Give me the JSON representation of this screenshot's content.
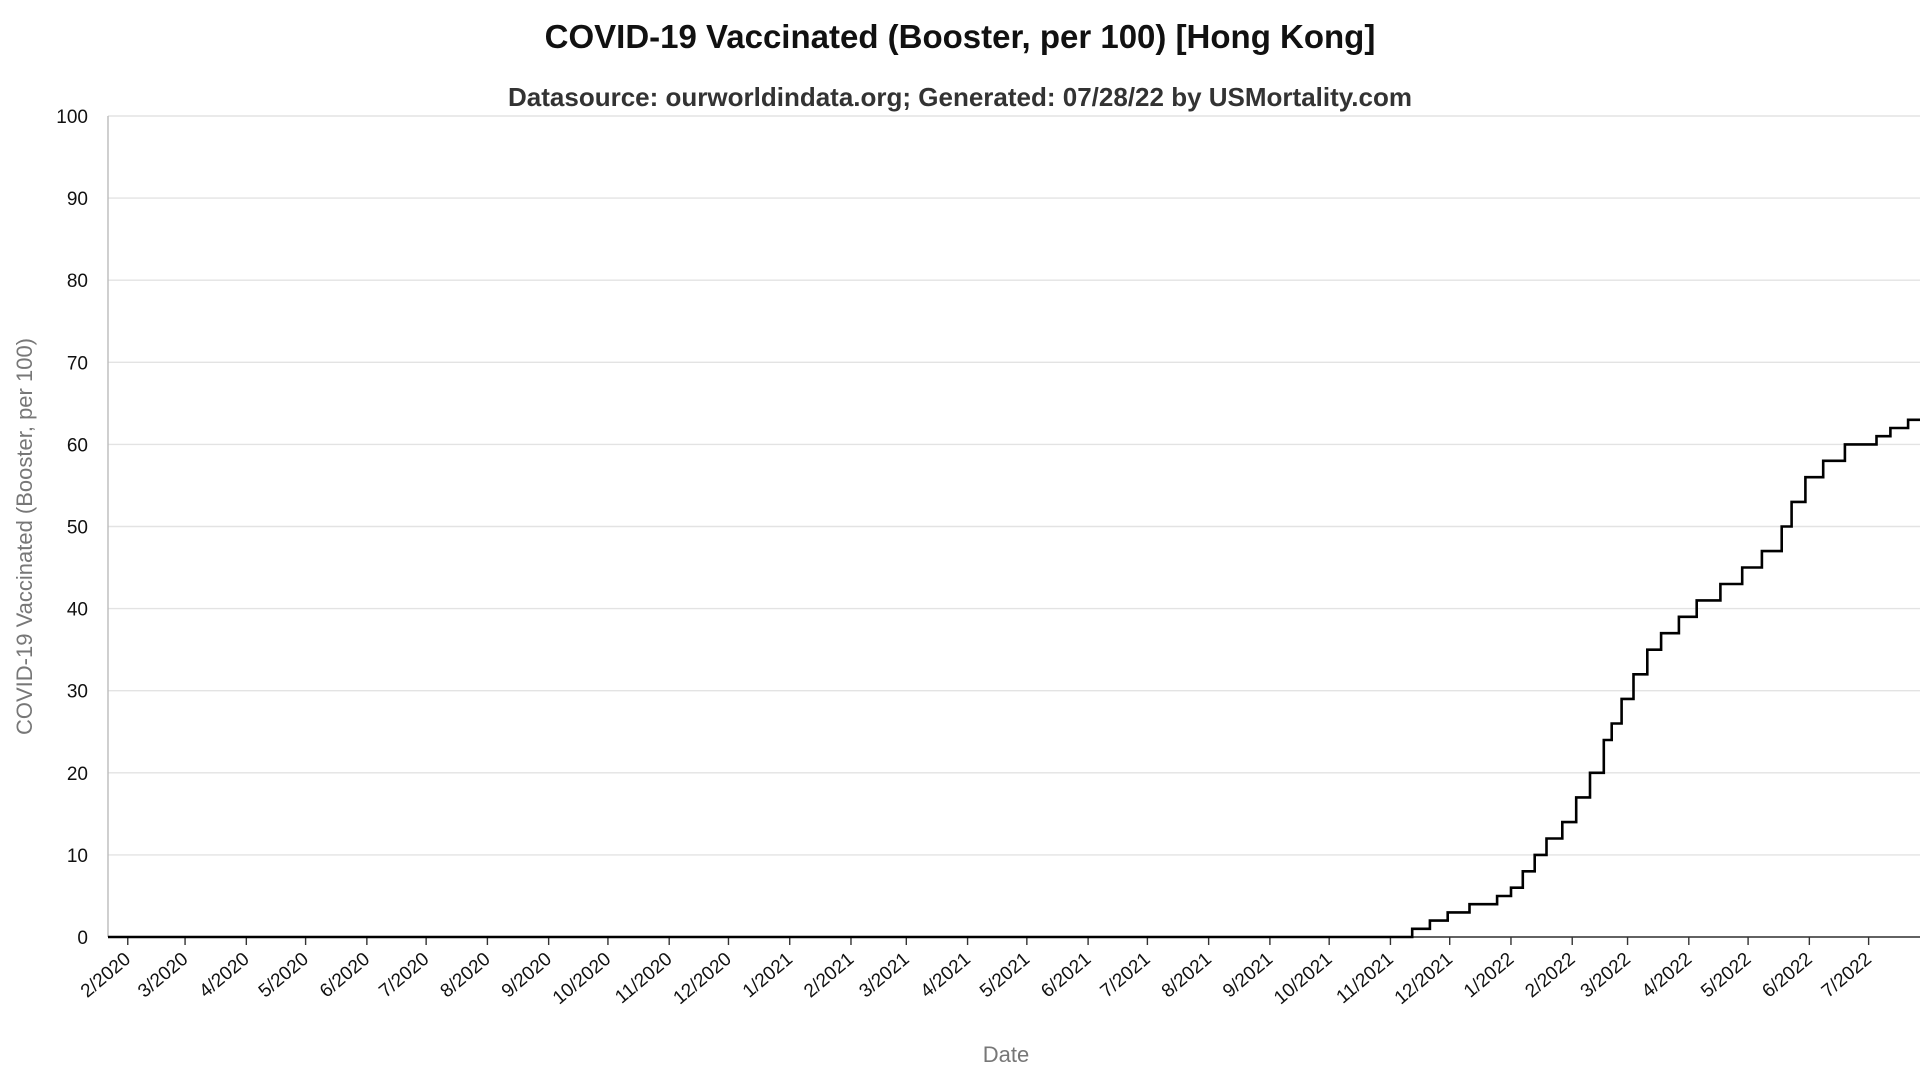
{
  "chart_data": {
    "type": "line",
    "title": "COVID-19 Vaccinated (Booster, per 100) [Hong Kong]",
    "subtitle": "Datasource: ourworldindata.org; Generated: 07/28/22 by USMortality.com",
    "xlabel": "Date",
    "ylabel": "COVID-19 Vaccinated (Booster, per 100)",
    "ylim": [
      0,
      100
    ],
    "xlim": [
      "2020-01-22",
      "2022-07-27"
    ],
    "yticks": [
      0,
      10,
      20,
      30,
      40,
      50,
      60,
      70,
      80,
      90,
      100
    ],
    "xticks": [
      {
        "label": "2/2020",
        "date": "2020-02-01"
      },
      {
        "label": "3/2020",
        "date": "2020-03-01"
      },
      {
        "label": "4/2020",
        "date": "2020-04-01"
      },
      {
        "label": "5/2020",
        "date": "2020-05-01"
      },
      {
        "label": "6/2020",
        "date": "2020-06-01"
      },
      {
        "label": "7/2020",
        "date": "2020-07-01"
      },
      {
        "label": "8/2020",
        "date": "2020-08-01"
      },
      {
        "label": "9/2020",
        "date": "2020-09-01"
      },
      {
        "label": "10/2020",
        "date": "2020-10-01"
      },
      {
        "label": "11/2020",
        "date": "2020-11-01"
      },
      {
        "label": "12/2020",
        "date": "2020-12-01"
      },
      {
        "label": "1/2021",
        "date": "2021-01-01"
      },
      {
        "label": "2/2021",
        "date": "2021-02-01"
      },
      {
        "label": "3/2021",
        "date": "2021-03-01"
      },
      {
        "label": "4/2021",
        "date": "2021-04-01"
      },
      {
        "label": "5/2021",
        "date": "2021-05-01"
      },
      {
        "label": "6/2021",
        "date": "2021-06-01"
      },
      {
        "label": "7/2021",
        "date": "2021-07-01"
      },
      {
        "label": "8/2021",
        "date": "2021-08-01"
      },
      {
        "label": "9/2021",
        "date": "2021-09-01"
      },
      {
        "label": "10/2021",
        "date": "2021-10-01"
      },
      {
        "label": "11/2021",
        "date": "2021-11-01"
      },
      {
        "label": "12/2021",
        "date": "2021-12-01"
      },
      {
        "label": "1/2022",
        "date": "2022-01-01"
      },
      {
        "label": "2/2022",
        "date": "2022-02-01"
      },
      {
        "label": "3/2022",
        "date": "2022-03-01"
      },
      {
        "label": "4/2022",
        "date": "2022-04-01"
      },
      {
        "label": "5/2022",
        "date": "2022-05-01"
      },
      {
        "label": "6/2022",
        "date": "2022-06-01"
      },
      {
        "label": "7/2022",
        "date": "2022-07-01"
      }
    ],
    "grid": true,
    "series": [
      {
        "color": "#000000",
        "points": [
          {
            "x": "2020-01-22",
            "y": 0
          },
          {
            "x": "2021-11-11",
            "y": 0
          },
          {
            "x": "2021-11-12",
            "y": 1
          },
          {
            "x": "2021-11-21",
            "y": 2
          },
          {
            "x": "2021-11-30",
            "y": 3
          },
          {
            "x": "2021-12-11",
            "y": 4
          },
          {
            "x": "2021-12-25",
            "y": 5
          },
          {
            "x": "2022-01-01",
            "y": 6
          },
          {
            "x": "2022-01-07",
            "y": 8
          },
          {
            "x": "2022-01-13",
            "y": 10
          },
          {
            "x": "2022-01-19",
            "y": 12
          },
          {
            "x": "2022-01-27",
            "y": 14
          },
          {
            "x": "2022-02-03",
            "y": 17
          },
          {
            "x": "2022-02-10",
            "y": 20
          },
          {
            "x": "2022-02-17",
            "y": 24
          },
          {
            "x": "2022-02-21",
            "y": 26
          },
          {
            "x": "2022-02-26",
            "y": 29
          },
          {
            "x": "2022-03-04",
            "y": 32
          },
          {
            "x": "2022-03-11",
            "y": 35
          },
          {
            "x": "2022-03-18",
            "y": 37
          },
          {
            "x": "2022-03-27",
            "y": 39
          },
          {
            "x": "2022-04-05",
            "y": 41
          },
          {
            "x": "2022-04-17",
            "y": 43
          },
          {
            "x": "2022-04-28",
            "y": 45
          },
          {
            "x": "2022-05-08",
            "y": 47
          },
          {
            "x": "2022-05-18",
            "y": 50
          },
          {
            "x": "2022-05-23",
            "y": 53
          },
          {
            "x": "2022-05-30",
            "y": 56
          },
          {
            "x": "2022-06-08",
            "y": 58
          },
          {
            "x": "2022-06-19",
            "y": 60
          },
          {
            "x": "2022-07-05",
            "y": 61
          },
          {
            "x": "2022-07-12",
            "y": 62
          },
          {
            "x": "2022-07-21",
            "y": 63
          },
          {
            "x": "2022-07-27",
            "y": 63
          }
        ]
      }
    ]
  }
}
